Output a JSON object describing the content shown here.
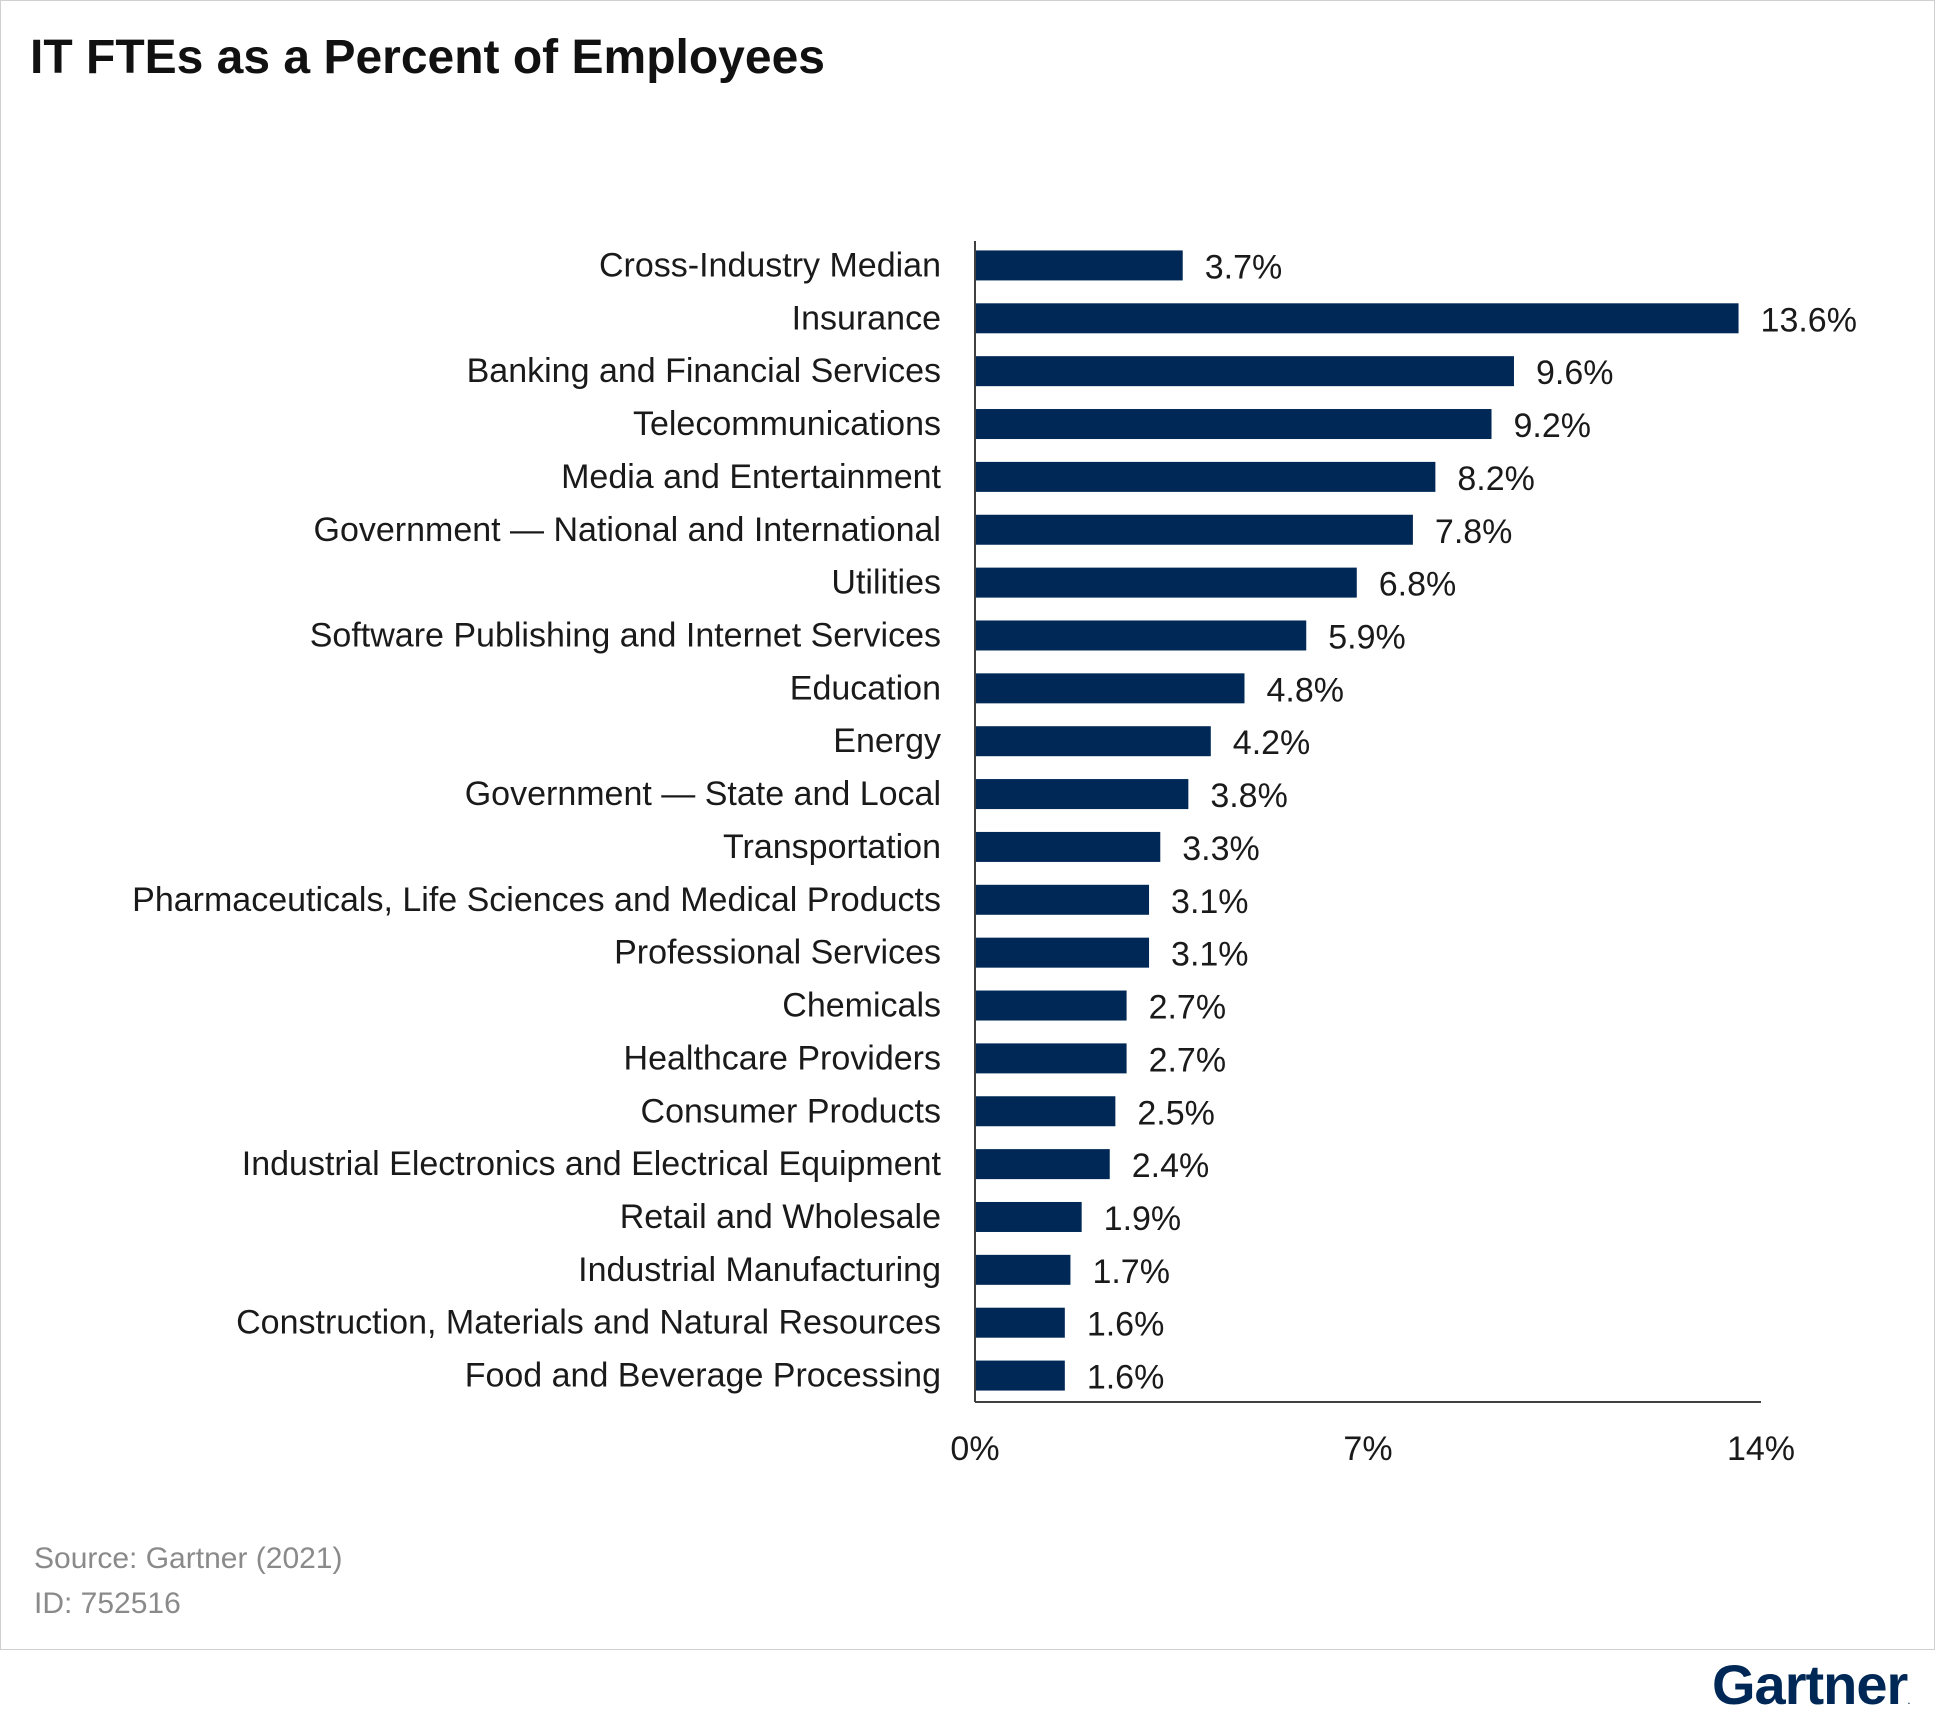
{
  "title": "IT FTEs as a Percent of Employees",
  "footer": {
    "source": "Source: Gartner (2021)",
    "id": "ID: 752516"
  },
  "brand": {
    "name": "Gartner",
    "mark": "."
  },
  "colors": {
    "bar": "#002856",
    "axis": "#404040",
    "text": "#1a1a1a",
    "muted": "#8a8a8a"
  },
  "chart_data": {
    "type": "bar",
    "orientation": "horizontal",
    "categories": [
      "Cross-Industry Median",
      "Insurance",
      "Banking and Financial Services",
      "Telecommunications",
      "Media and Entertainment",
      "Government — National and International",
      "Utilities",
      "Software Publishing and Internet Services",
      "Education",
      "Energy",
      "Government — State and Local",
      "Transportation",
      "Pharmaceuticals, Life Sciences and Medical Products",
      "Professional Services",
      "Chemicals",
      "Healthcare Providers",
      "Consumer Products",
      "Industrial Electronics and Electrical Equipment",
      "Retail and Wholesale",
      "Industrial Manufacturing",
      "Construction, Materials and Natural Resources",
      "Food and Beverage Processing"
    ],
    "values": [
      3.7,
      13.6,
      9.6,
      9.2,
      8.2,
      7.8,
      6.8,
      5.9,
      4.8,
      4.2,
      3.8,
      3.3,
      3.1,
      3.1,
      2.7,
      2.7,
      2.5,
      2.4,
      1.9,
      1.7,
      1.6,
      1.6
    ],
    "value_labels": [
      "3.7%",
      "13.6%",
      "9.6%",
      "9.2%",
      "8.2%",
      "7.8%",
      "6.8%",
      "5.9%",
      "4.8%",
      "4.2%",
      "3.8%",
      "3.3%",
      "3.1%",
      "3.1%",
      "2.7%",
      "2.7%",
      "2.5%",
      "2.4%",
      "1.9%",
      "1.7%",
      "1.6%",
      "1.6%"
    ],
    "xlim": [
      0,
      14
    ],
    "xticks": [
      0,
      7,
      14
    ],
    "xtick_labels": [
      "0%",
      "7%",
      "14%"
    ],
    "grid": false,
    "legend": "none"
  }
}
